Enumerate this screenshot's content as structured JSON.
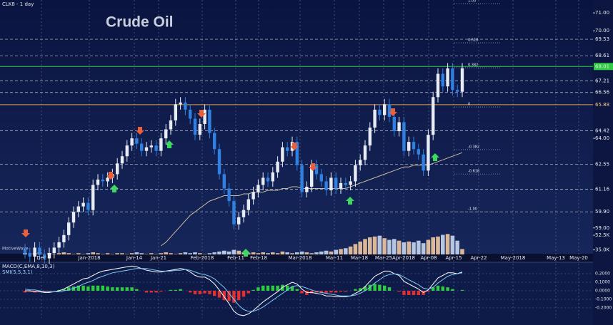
{
  "header": "CLK8 - 1 day",
  "watermark": "MotiveWave",
  "chart_data": {
    "type": "candlestick",
    "title": "Crude Oil",
    "x_labels": [
      "Dec",
      "Jan-2018",
      "Jan-14",
      "Jan-21",
      "Feb-2018",
      "Feb-11",
      "Feb-18",
      "Mar-2018",
      "Mar-11",
      "Mar-18",
      "Mar-25",
      "Apr-2018",
      "Apr-08",
      "Apr-15",
      "Apr-22",
      "May-2018",
      "May-13",
      "May-20"
    ],
    "open": [
      57.8,
      57.6,
      57.4,
      57.9,
      57.5,
      57.3,
      57.6,
      57.9,
      58.2,
      58.6,
      59.3,
      59.9,
      60.2,
      60.4,
      60.0,
      61.4,
      61.7,
      61.6,
      61.8,
      62.0,
      62.6,
      63.0,
      63.6,
      64.0,
      63.7,
      63.3,
      63.5,
      63.6,
      63.3,
      64.0,
      64.5,
      65.0,
      65.9,
      66.0,
      65.6,
      65.1,
      64.2,
      64.8,
      65.6,
      64.3,
      63.4,
      62.0,
      61.2,
      60.5,
      59.2,
      59.6,
      60.0,
      60.6,
      61.0,
      61.4,
      61.8,
      61.6,
      62.1,
      62.7,
      63.5,
      63.3,
      63.8,
      62.5,
      61.0,
      61.3,
      62.5,
      62.0,
      61.6,
      61.1,
      61.8,
      61.2,
      61.5,
      61.4,
      61.6,
      62.5,
      62.8,
      63.6,
      64.6,
      65.6,
      65.3,
      65.9,
      65.2,
      64.4,
      64.9,
      63.3,
      63.8,
      63.4,
      63.1,
      62.2,
      64.2,
      66.3,
      67.6,
      66.9,
      67.9,
      66.7,
      66.6
    ],
    "high": [
      58.1,
      57.9,
      58.2,
      58.2,
      57.8,
      57.9,
      58.2,
      58.5,
      58.9,
      59.6,
      60.2,
      60.5,
      60.7,
      60.7,
      61.7,
      62.0,
      62.0,
      62.1,
      62.3,
      62.9,
      63.3,
      63.9,
      64.3,
      64.3,
      64.0,
      63.8,
      63.9,
      63.9,
      64.3,
      64.8,
      65.3,
      66.2,
      66.3,
      66.3,
      65.9,
      65.4,
      65.1,
      65.9,
      65.9,
      64.6,
      63.7,
      62.3,
      61.5,
      60.8,
      59.9,
      60.3,
      60.9,
      61.3,
      61.7,
      62.1,
      62.1,
      62.4,
      63.0,
      63.8,
      63.8,
      64.1,
      64.1,
      62.8,
      61.6,
      62.8,
      62.8,
      62.3,
      61.9,
      62.1,
      62.1,
      61.8,
      61.8,
      61.9,
      62.8,
      63.1,
      63.9,
      64.9,
      65.9,
      65.9,
      66.2,
      66.2,
      65.5,
      65.2,
      65.2,
      64.1,
      64.1,
      63.7,
      63.4,
      64.5,
      66.6,
      67.9,
      67.9,
      68.2,
      68.2,
      67.0,
      68.2
    ],
    "low": [
      57.3,
      57.1,
      57.1,
      57.2,
      57.0,
      57.0,
      57.3,
      57.6,
      57.9,
      58.3,
      59.0,
      59.6,
      59.9,
      59.7,
      59.7,
      61.1,
      61.3,
      61.3,
      61.5,
      61.7,
      62.3,
      62.7,
      63.3,
      63.4,
      63.0,
      63.0,
      63.2,
      63.0,
      63.0,
      63.7,
      64.2,
      64.7,
      65.6,
      65.3,
      64.8,
      63.9,
      63.9,
      64.5,
      64.0,
      63.1,
      61.7,
      60.9,
      60.2,
      58.9,
      58.9,
      59.3,
      59.7,
      60.3,
      60.7,
      61.1,
      61.3,
      61.3,
      61.8,
      62.4,
      63.0,
      63.0,
      62.2,
      60.7,
      60.7,
      61.0,
      61.7,
      61.3,
      60.8,
      60.8,
      60.9,
      60.9,
      61.1,
      61.1,
      61.3,
      62.2,
      62.5,
      63.3,
      64.3,
      65.0,
      65.0,
      64.9,
      64.1,
      64.1,
      63.0,
      63.0,
      63.1,
      62.8,
      61.9,
      61.9,
      63.9,
      66.0,
      66.6,
      66.6,
      66.4,
      66.3,
      66.3
    ],
    "close": [
      57.6,
      57.4,
      57.9,
      57.5,
      57.3,
      57.6,
      57.9,
      58.2,
      58.6,
      59.3,
      59.9,
      60.2,
      60.4,
      60.0,
      61.4,
      61.7,
      61.6,
      61.8,
      62.0,
      62.6,
      63.0,
      63.6,
      64.0,
      63.7,
      63.3,
      63.5,
      63.6,
      63.3,
      64.0,
      64.5,
      65.0,
      65.9,
      66.0,
      65.6,
      65.1,
      64.2,
      64.8,
      65.6,
      64.3,
      63.4,
      62.0,
      61.2,
      60.5,
      59.2,
      59.6,
      60.0,
      60.6,
      61.0,
      61.4,
      61.8,
      61.6,
      62.1,
      62.7,
      63.5,
      63.3,
      63.8,
      62.5,
      61.0,
      61.3,
      62.5,
      62.0,
      61.6,
      61.1,
      61.8,
      61.2,
      61.5,
      61.4,
      61.6,
      62.5,
      62.8,
      63.6,
      64.6,
      65.6,
      65.3,
      65.9,
      65.2,
      64.4,
      64.9,
      63.3,
      63.8,
      63.4,
      63.1,
      62.2,
      64.2,
      66.3,
      67.6,
      66.9,
      67.9,
      66.7,
      66.6,
      67.9
    ],
    "up_color": "#e8ecf4",
    "down_color": "#2f80e0",
    "ylim": [
      57.56,
      71.72
    ],
    "yticks": [
      {
        "value": 71,
        "label": "71.00"
      },
      {
        "value": 70,
        "label": "70.00"
      },
      {
        "value": 64,
        "label": "64.00"
      },
      {
        "value": 59,
        "label": "59.00"
      }
    ],
    "levels": [
      {
        "value": 69.53,
        "color": "#ffffff",
        "style": "dashed"
      },
      {
        "value": 68.61,
        "color": "#ffffff",
        "style": "dashed"
      },
      {
        "value": 68.01,
        "color": "#2ecc40",
        "style": "solid"
      },
      {
        "value": 67.21,
        "color": "#ffffff",
        "style": "dashed"
      },
      {
        "value": 66.56,
        "color": "#ffffff",
        "style": "dashed"
      },
      {
        "value": 65.88,
        "color": "#e8a040",
        "style": "solid"
      },
      {
        "value": 64.42,
        "color": "#ffffff",
        "style": "dashed"
      },
      {
        "value": 62.55,
        "color": "#ffffff",
        "style": "dashed"
      },
      {
        "value": 61.16,
        "color": "#ffffff",
        "style": "dashed"
      },
      {
        "value": {
          "value": 59.9,
          "label": "59.90"
        },
        "color": "#ffffff",
        "style": "dashed"
      }
    ],
    "fib": [
      {
        "label": "1.00",
        "price": 71.52
      },
      {
        "label": "0.618",
        "price": 69.33
      },
      {
        "label": "0.382",
        "price": 67.94
      },
      {
        "label": "0",
        "price": 65.75
      },
      {
        "label": "-0.382",
        "price": 63.37
      },
      {
        "label": "-0.618",
        "price": 62.01
      },
      {
        "label": "-1.00",
        "price": 59.9
      }
    ],
    "moving_average": {
      "color": "#cbbd9c",
      "values": [
        null,
        null,
        null,
        null,
        null,
        null,
        null,
        null,
        null,
        null,
        null,
        null,
        null,
        null,
        null,
        null,
        null,
        null,
        null,
        null,
        null,
        null,
        null,
        null,
        null,
        null,
        null,
        null,
        58.0,
        58.2,
        58.5,
        58.8,
        59.1,
        59.4,
        59.7,
        59.9,
        60.1,
        60.3,
        60.5,
        60.6,
        60.7,
        60.8,
        60.8,
        60.8,
        60.8,
        60.9,
        60.9,
        61.0,
        61.0,
        61.0,
        61.1,
        61.1,
        61.1,
        61.2,
        61.2,
        61.3,
        61.3,
        61.2,
        61.2,
        61.2,
        61.2,
        61.2,
        61.2,
        61.2,
        61.2,
        61.2,
        61.2,
        61.3,
        61.4,
        61.5,
        61.6,
        61.7,
        61.8,
        61.9,
        62.0,
        62.1,
        62.2,
        62.3,
        62.4,
        62.4,
        62.5,
        62.5,
        62.5,
        62.5,
        62.6,
        62.7,
        62.8,
        62.9,
        63.0,
        63.1,
        63.2
      ]
    },
    "volume": {
      "values": [
        31,
        30,
        31,
        32,
        30,
        31,
        30,
        31,
        32,
        31,
        30,
        31,
        30,
        31,
        32,
        31,
        30,
        31,
        30,
        31,
        31,
        30,
        31,
        32,
        31,
        30,
        31,
        30,
        31,
        32,
        31,
        30,
        31,
        32,
        31,
        32,
        31,
        30,
        31,
        32,
        33,
        34,
        33,
        35,
        34,
        32,
        31,
        32,
        31,
        32,
        31,
        32,
        31,
        33,
        32,
        31,
        32,
        33,
        32,
        31,
        32,
        33,
        34,
        33,
        35,
        36,
        37,
        39,
        42,
        45,
        48,
        50,
        51,
        52,
        49,
        47,
        48,
        46,
        44,
        45,
        44,
        46,
        43,
        47,
        50,
        51,
        53,
        54,
        52,
        46,
        36
      ],
      "up_color": "#f0c8a0",
      "down_color": "#c8d8ee",
      "lim": [
        29.5,
        56
      ],
      "ticks": [
        {
          "value": 52.5,
          "label": "52.5K"
        },
        {
          "value": 35,
          "label": "35.0K"
        }
      ]
    },
    "macd": {
      "title": "MACD(C,EMA,8,10,3)",
      "subtitle": "SMI(5,5,3,1)",
      "ylim": [
        -0.317,
        0.333
      ],
      "yticks": [
        {
          "value": 0.2,
          "label": "0.2000"
        },
        {
          "value": 0.1,
          "label": "0.1000"
        },
        {
          "value": 0,
          "label": "0.0000"
        },
        {
          "value": -0.1,
          "label": "-0.1000"
        },
        {
          "value": -0.2,
          "label": "-0.2000"
        }
      ],
      "macd_line": {
        "color": "#ffffff",
        "values": [
          0.0,
          0.0,
          -0.01,
          -0.01,
          -0.02,
          -0.02,
          -0.01,
          0.0,
          0.02,
          0.05,
          0.08,
          0.11,
          0.14,
          0.15,
          0.18,
          0.21,
          0.23,
          0.24,
          0.25,
          0.26,
          0.27,
          0.28,
          0.29,
          0.28,
          0.26,
          0.24,
          0.23,
          0.22,
          0.22,
          0.23,
          0.24,
          0.25,
          0.26,
          0.25,
          0.22,
          0.18,
          0.16,
          0.16,
          0.13,
          0.08,
          0.01,
          -0.07,
          -0.15,
          -0.24,
          -0.28,
          -0.29,
          -0.27,
          -0.23,
          -0.18,
          -0.13,
          -0.09,
          -0.05,
          -0.01,
          0.04,
          0.07,
          0.1,
          0.08,
          0.02,
          -0.02,
          -0.02,
          -0.03,
          -0.04,
          -0.06,
          -0.06,
          -0.07,
          -0.07,
          -0.07,
          -0.06,
          -0.03,
          0.0,
          0.05,
          0.11,
          0.17,
          0.2,
          0.23,
          0.23,
          0.2,
          0.18,
          0.11,
          0.08,
          0.05,
          0.02,
          -0.02,
          0.01,
          0.08,
          0.15,
          0.18,
          0.21,
          0.21,
          0.2,
          0.22
        ]
      },
      "signal_line": {
        "color": "#7fc8f0",
        "values": [
          0.02,
          0.01,
          0.01,
          0.0,
          -0.01,
          -0.01,
          -0.01,
          -0.01,
          0.0,
          0.01,
          0.03,
          0.05,
          0.08,
          0.1,
          0.12,
          0.15,
          0.17,
          0.19,
          0.21,
          0.22,
          0.23,
          0.24,
          0.25,
          0.26,
          0.26,
          0.26,
          0.25,
          0.24,
          0.23,
          0.23,
          0.23,
          0.24,
          0.24,
          0.25,
          0.24,
          0.22,
          0.2,
          0.19,
          0.17,
          0.14,
          0.09,
          0.04,
          -0.03,
          -0.1,
          -0.17,
          -0.22,
          -0.24,
          -0.24,
          -0.22,
          -0.19,
          -0.15,
          -0.11,
          -0.07,
          -0.03,
          0.01,
          0.05,
          0.06,
          0.05,
          0.03,
          0.01,
          -0.01,
          -0.02,
          -0.03,
          -0.04,
          -0.05,
          -0.06,
          -0.06,
          -0.06,
          -0.05,
          -0.03,
          0.0,
          0.04,
          0.09,
          0.13,
          0.17,
          0.19,
          0.2,
          0.19,
          0.16,
          0.13,
          0.1,
          0.07,
          0.03,
          0.02,
          0.04,
          0.09,
          0.13,
          0.17,
          0.19,
          0.2,
          0.21
        ]
      },
      "histogram": {
        "pos_color": "#2ecc40",
        "neg_color": "#e03030",
        "values": [
          -0.02,
          -0.01,
          -0.02,
          -0.01,
          -0.01,
          -0.01,
          0.0,
          0.01,
          0.02,
          0.04,
          0.05,
          0.06,
          0.06,
          0.05,
          0.06,
          0.06,
          0.06,
          0.05,
          0.04,
          0.04,
          0.04,
          0.04,
          0.04,
          0.02,
          0.0,
          -0.02,
          -0.02,
          -0.02,
          -0.01,
          0.0,
          0.01,
          0.01,
          0.02,
          0.0,
          -0.02,
          -0.04,
          -0.04,
          -0.03,
          -0.04,
          -0.06,
          -0.08,
          -0.11,
          -0.12,
          -0.14,
          -0.11,
          -0.07,
          -0.03,
          0.01,
          0.04,
          0.06,
          0.06,
          0.06,
          0.06,
          0.07,
          0.06,
          0.05,
          0.02,
          -0.03,
          -0.05,
          -0.03,
          -0.02,
          -0.02,
          -0.03,
          -0.02,
          -0.02,
          -0.01,
          -0.01,
          0.0,
          0.02,
          0.03,
          0.05,
          0.07,
          0.08,
          0.07,
          0.06,
          0.04,
          0.0,
          -0.01,
          -0.05,
          -0.05,
          -0.05,
          -0.05,
          -0.05,
          -0.01,
          0.04,
          0.06,
          0.05,
          0.04,
          0.02,
          0.0,
          0.01
        ]
      }
    }
  }
}
